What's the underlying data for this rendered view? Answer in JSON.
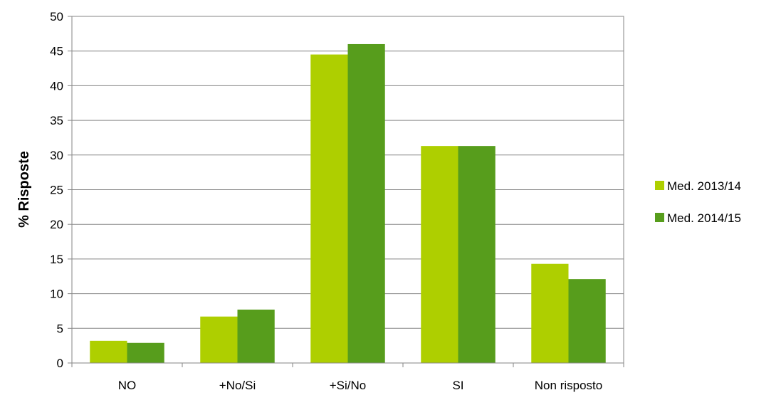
{
  "chart_data": {
    "type": "bar",
    "categories": [
      "NO",
      "+No/Si",
      "+Si/No",
      "SI",
      "Non risposto"
    ],
    "series": [
      {
        "name": "Med. 2013/14",
        "values": [
          3.2,
          6.7,
          44.5,
          31.3,
          14.3
        ],
        "color": "#aecf00"
      },
      {
        "name": "Med. 2014/15",
        "values": [
          2.9,
          7.7,
          46.0,
          31.3,
          12.1
        ],
        "color": "#579d1c"
      }
    ],
    "ylabel": "% Risposte",
    "xlabel": "",
    "ylim": [
      0,
      50
    ],
    "yticks": [
      0,
      5,
      10,
      15,
      20,
      25,
      30,
      35,
      40,
      45,
      50
    ],
    "grid": true,
    "legend_position": "right"
  }
}
